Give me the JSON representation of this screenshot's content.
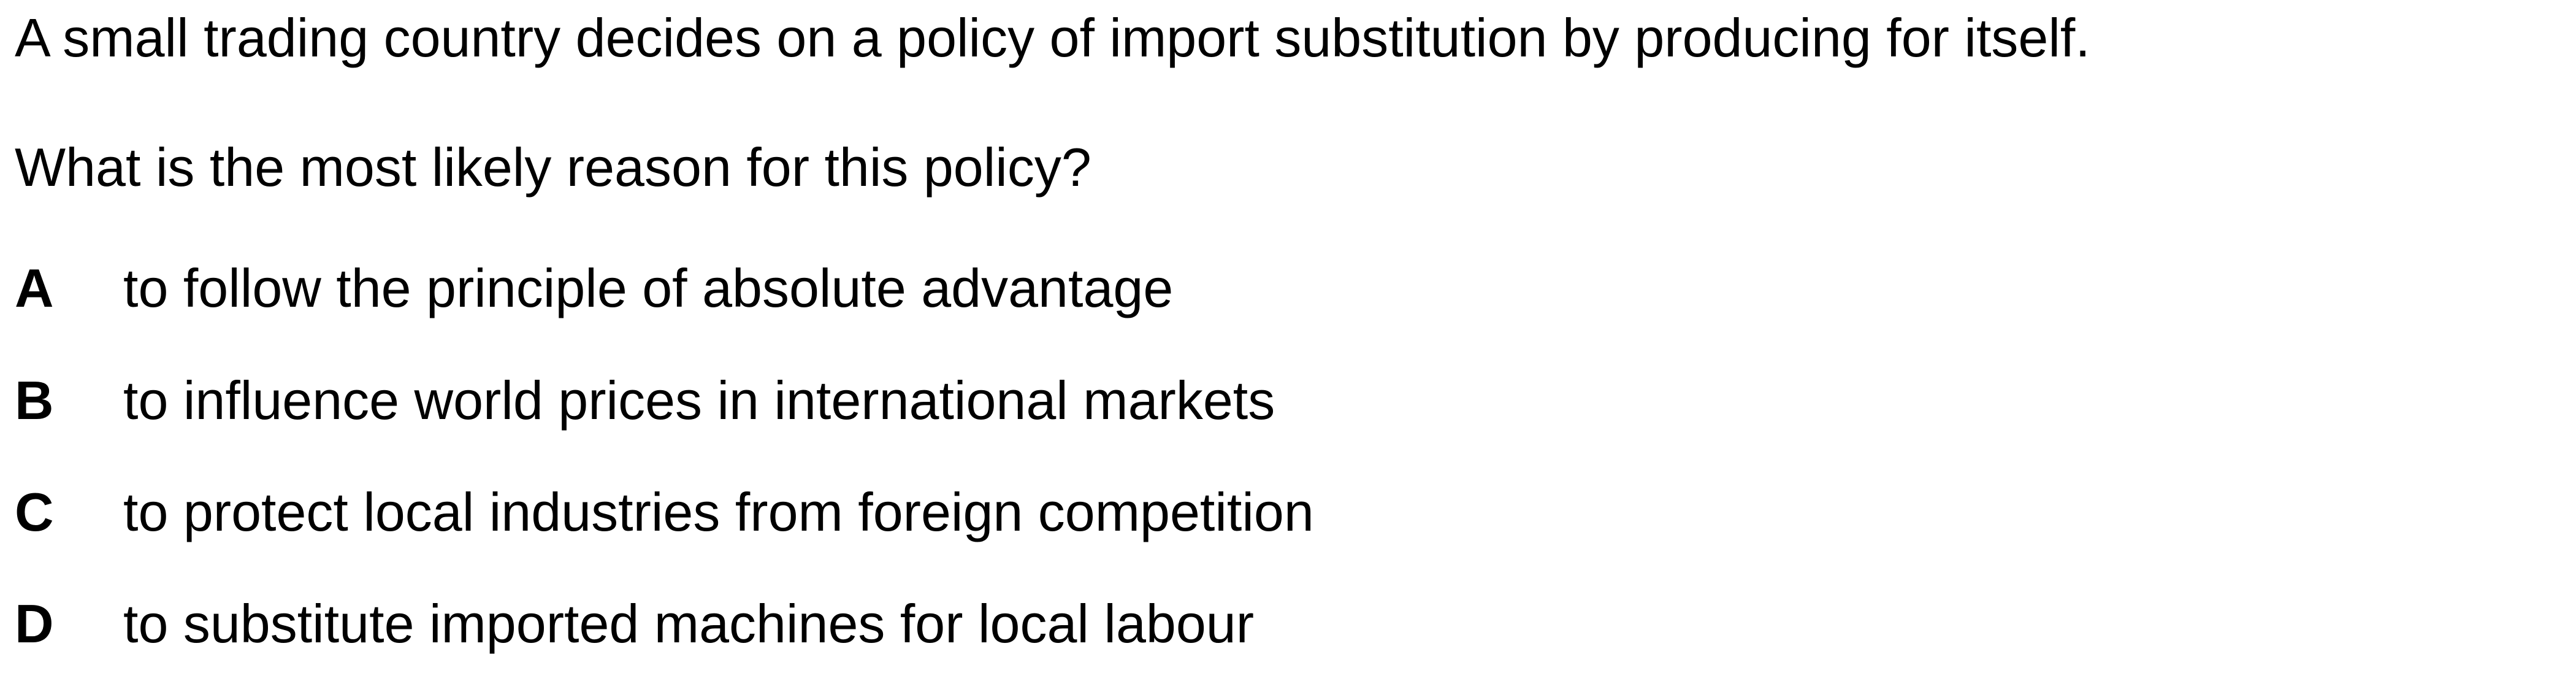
{
  "question": {
    "stem_line_1": "A small trading country decides on a policy of import substitution by producing for itself.",
    "stem_line_2": "What is the most likely reason for this policy?"
  },
  "options": [
    {
      "letter": "A",
      "text": "to follow the principle of absolute advantage"
    },
    {
      "letter": "B",
      "text": "to influence world prices in international markets"
    },
    {
      "letter": "C",
      "text": "to protect local industries from foreign competition"
    },
    {
      "letter": "D",
      "text": "to substitute imported machines for local labour"
    }
  ]
}
